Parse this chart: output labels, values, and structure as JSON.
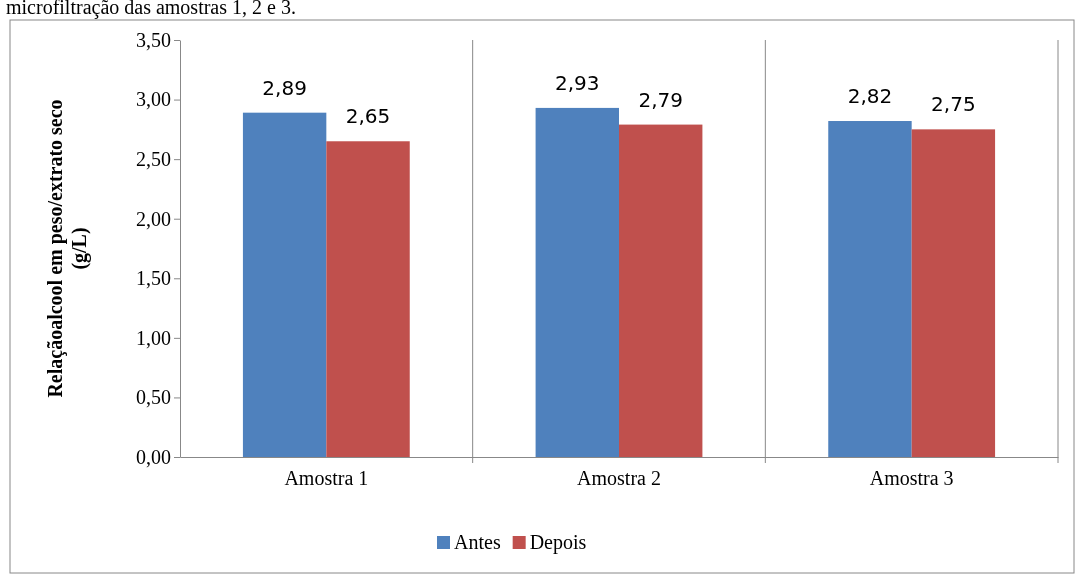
{
  "chart_data": {
    "type": "bar",
    "ylabel": "Relaçãoalcool em peso/extrato seco (g/L)",
    "annotations": [
      "microfiltração das amostras 1, 2 e 3."
    ],
    "categories": [
      "Amostra 1",
      "Amostra 2",
      "Amostra 3"
    ],
    "series": [
      {
        "name": "Antes",
        "color": "#4f81bd",
        "values": [
          2.89,
          2.93,
          2.82
        ],
        "value_labels": [
          "2,89",
          "2,93",
          "2,82"
        ]
      },
      {
        "name": "Depois",
        "color": "#c0504d",
        "values": [
          2.65,
          2.79,
          2.75
        ],
        "value_labels": [
          "2,65",
          "2,79",
          "2,75"
        ]
      }
    ],
    "ylim": [
      0,
      3.5
    ],
    "yticks": [
      {
        "value": 0,
        "label": "0,00"
      },
      {
        "value": 0.5,
        "label": "0,50"
      },
      {
        "value": 1,
        "label": "1,00"
      },
      {
        "value": 1.5,
        "label": "1,50"
      },
      {
        "value": 2,
        "label": "2,00"
      },
      {
        "value": 2.5,
        "label": "2,50"
      },
      {
        "value": 3,
        "label": "3,00"
      },
      {
        "value": 3.5,
        "label": "3,50"
      }
    ],
    "grid": "x",
    "legend": "bottom"
  }
}
